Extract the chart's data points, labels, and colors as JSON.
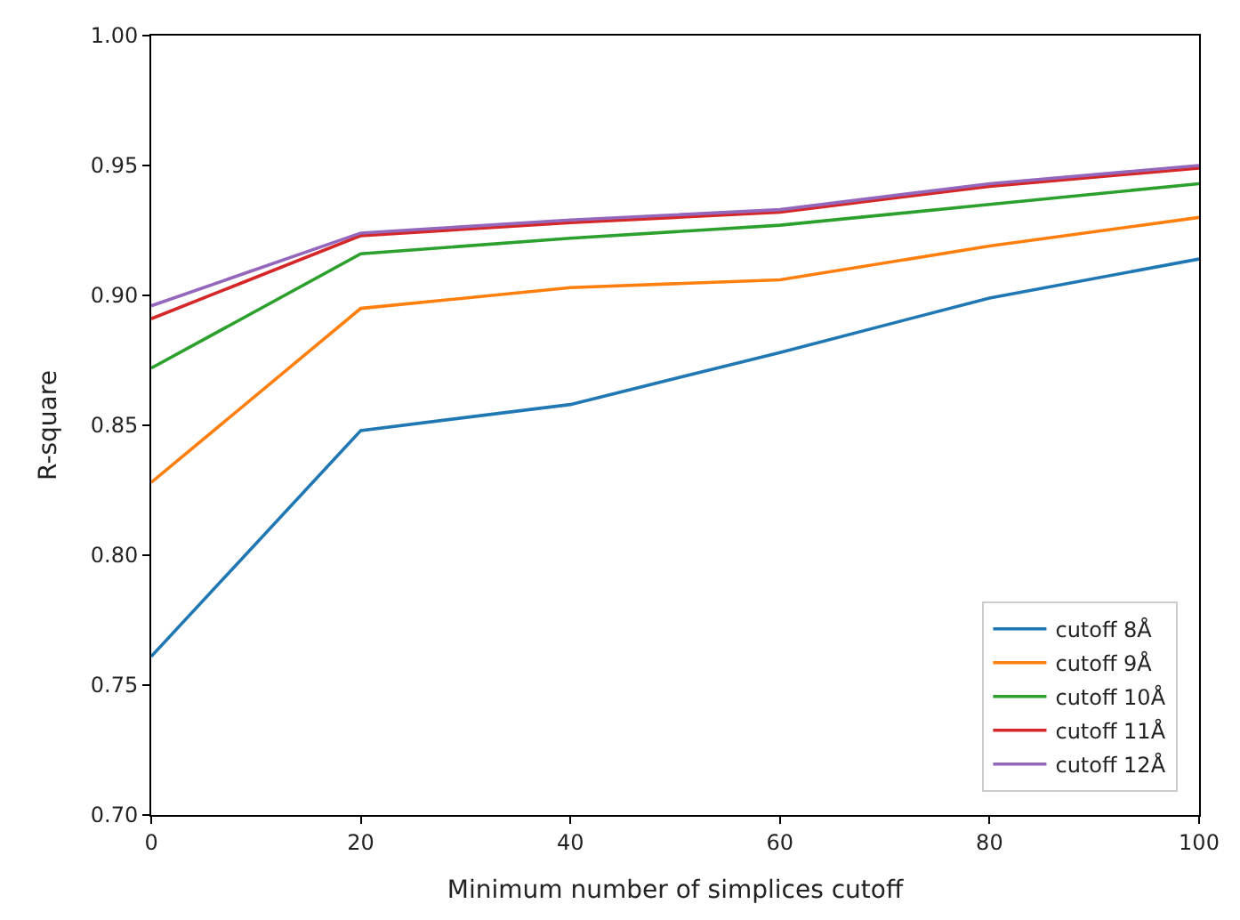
{
  "chart_data": {
    "type": "line",
    "xlabel": "Minimum number of simplices cutoff",
    "ylabel": "R-square",
    "x": [
      0,
      20,
      40,
      60,
      80,
      100
    ],
    "series": [
      {
        "name": "cutoff 8Å",
        "color": "#1f77b4",
        "values": [
          0.761,
          0.848,
          0.858,
          0.878,
          0.899,
          0.914
        ]
      },
      {
        "name": "cutoff 9Å",
        "color": "#ff7f0e",
        "values": [
          0.828,
          0.895,
          0.903,
          0.906,
          0.919,
          0.93
        ]
      },
      {
        "name": "cutoff 10Å",
        "color": "#2ca02c",
        "values": [
          0.872,
          0.916,
          0.922,
          0.927,
          0.935,
          0.943
        ]
      },
      {
        "name": "cutoff 11Å",
        "color": "#d62728",
        "values": [
          0.891,
          0.923,
          0.928,
          0.932,
          0.942,
          0.949
        ]
      },
      {
        "name": "cutoff 12Å",
        "color": "#9467bd",
        "values": [
          0.896,
          0.924,
          0.929,
          0.933,
          0.943,
          0.95
        ]
      }
    ],
    "xlim": [
      0,
      100
    ],
    "xticks": [
      0,
      20,
      40,
      60,
      80,
      100
    ],
    "ylim": [
      0.7,
      1.0
    ],
    "yticks": [
      {
        "value": 0.7,
        "label": "0.70"
      },
      {
        "value": 0.75,
        "label": "0.75"
      },
      {
        "value": 0.8,
        "label": "0.80"
      },
      {
        "value": 0.85,
        "label": "0.85"
      },
      {
        "value": 0.9,
        "label": "0.90"
      },
      {
        "value": 0.95,
        "label": "0.95"
      },
      {
        "value": 1.0,
        "label": "1.00"
      }
    ],
    "grid": false,
    "legend": "bottom right",
    "marker": "none",
    "line_style": "solid"
  }
}
